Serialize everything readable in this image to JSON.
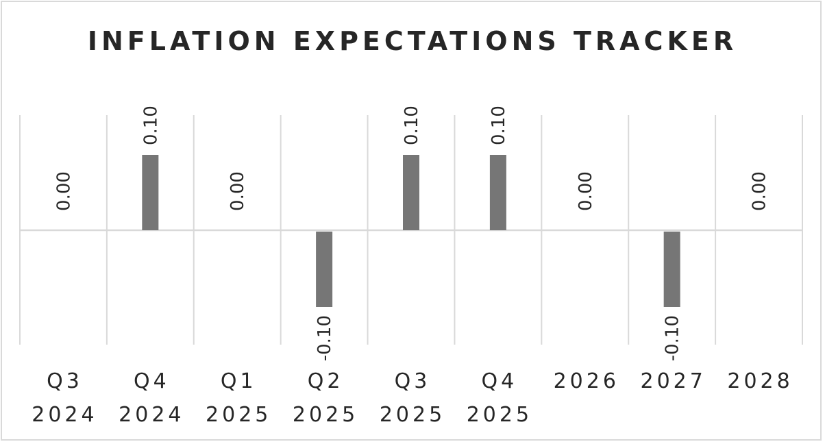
{
  "chart_data": {
    "type": "bar",
    "title": "INFLATION EXPECTATIONS TRACKER",
    "xlabel": "",
    "ylabel": "",
    "categories": [
      [
        "Q3",
        "2024"
      ],
      [
        "Q4",
        "2024"
      ],
      [
        "Q1",
        "2025"
      ],
      [
        "Q2",
        "2025"
      ],
      [
        "Q3",
        "2025"
      ],
      [
        "Q4",
        "2025"
      ],
      [
        "2026"
      ],
      [
        "2027"
      ],
      [
        "2028"
      ]
    ],
    "values": [
      0.0,
      0.1,
      0.0,
      -0.1,
      0.1,
      0.1,
      0.0,
      -0.1,
      0.0
    ],
    "data_labels": [
      "0.00",
      "0.10",
      "0.00",
      "-0.10",
      "0.10",
      "0.10",
      "0.00",
      "-0.10",
      "0.00"
    ],
    "ylim": [
      -0.15,
      0.15
    ],
    "grid": true,
    "legend": "none",
    "colors": {
      "bar": "#767676",
      "grid": "#d9d9d9",
      "text": "#262626",
      "border": "#d9d9d9"
    }
  }
}
